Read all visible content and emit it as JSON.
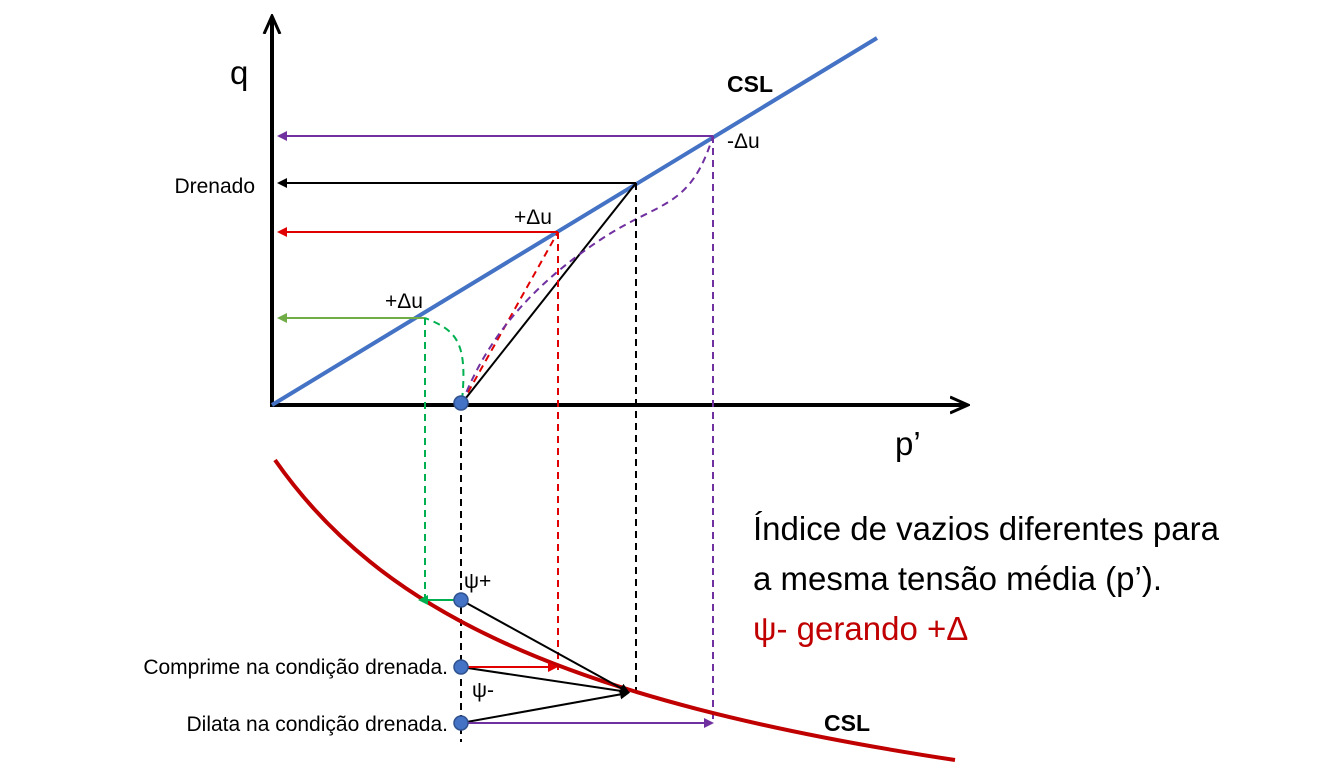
{
  "axes": {
    "y_label": "q",
    "x_label": "p’"
  },
  "csl_labels": {
    "upper": "CSL",
    "lower": "CSL"
  },
  "annotations": {
    "neg_du": "-Δu",
    "drenado": "Drenado",
    "pos_du_red": "+Δu",
    "pos_du_green": "+Δu",
    "psi_plus": "ψ+",
    "psi_minus": "ψ-",
    "comprime": "Comprime na condição drenada.",
    "dilata": "Dilata na condição drenada."
  },
  "text_block": {
    "lines": [
      "Índice de vazios diferentes para",
      "a mesma tensão média (p’).",
      "ψ- gerando +Δ"
    ]
  }
}
